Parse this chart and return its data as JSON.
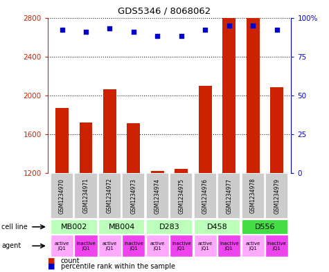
{
  "title": "GDS5346 / 8068062",
  "samples": [
    "GSM1234970",
    "GSM1234971",
    "GSM1234972",
    "GSM1234973",
    "GSM1234974",
    "GSM1234975",
    "GSM1234976",
    "GSM1234977",
    "GSM1234978",
    "GSM1234979"
  ],
  "counts": [
    1870,
    1720,
    2060,
    1710,
    1220,
    1240,
    2100,
    2800,
    2800,
    2080
  ],
  "percentiles": [
    92,
    91,
    93,
    91,
    88,
    88,
    92,
    95,
    95,
    92
  ],
  "ylim_left": [
    1200,
    2800
  ],
  "ylim_right": [
    0,
    100
  ],
  "yticks_left": [
    1200,
    1600,
    2000,
    2400,
    2800
  ],
  "yticks_right": [
    0,
    25,
    50,
    75,
    100
  ],
  "ytick_right_labels": [
    "0",
    "25",
    "50",
    "75",
    "100%"
  ],
  "cell_line_data": [
    {
      "label": "MB002",
      "c1": 0,
      "c2": 1,
      "color": "#bbffbb"
    },
    {
      "label": "MB004",
      "c1": 2,
      "c2": 3,
      "color": "#bbffbb"
    },
    {
      "label": "D283",
      "c1": 4,
      "c2": 5,
      "color": "#bbffbb"
    },
    {
      "label": "D458",
      "c1": 6,
      "c2": 7,
      "color": "#bbffbb"
    },
    {
      "label": "D556",
      "c1": 8,
      "c2": 9,
      "color": "#44dd44"
    }
  ],
  "agent_labels": [
    "active\nJQ1",
    "inactive\nJQ1",
    "active\nJQ1",
    "inactive\nJQ1",
    "active\nJQ1",
    "inactive\nJQ1",
    "active\nJQ1",
    "inactive\nJQ1",
    "active\nJQ1",
    "inactive\nJQ1"
  ],
  "agent_colors": [
    "#ffaaff",
    "#ee44ee",
    "#ffaaff",
    "#ee44ee",
    "#ffaaff",
    "#ee44ee",
    "#ffaaff",
    "#ee44ee",
    "#ffaaff",
    "#ee44ee"
  ],
  "bar_color": "#cc2200",
  "dot_color": "#0000cc",
  "grid_linestyle": "dotted",
  "grid_color": "#222222",
  "ylabel_left_color": "#cc2200",
  "ylabel_right_color": "#0000cc",
  "sample_box_color": "#cccccc",
  "bar_width": 0.55
}
